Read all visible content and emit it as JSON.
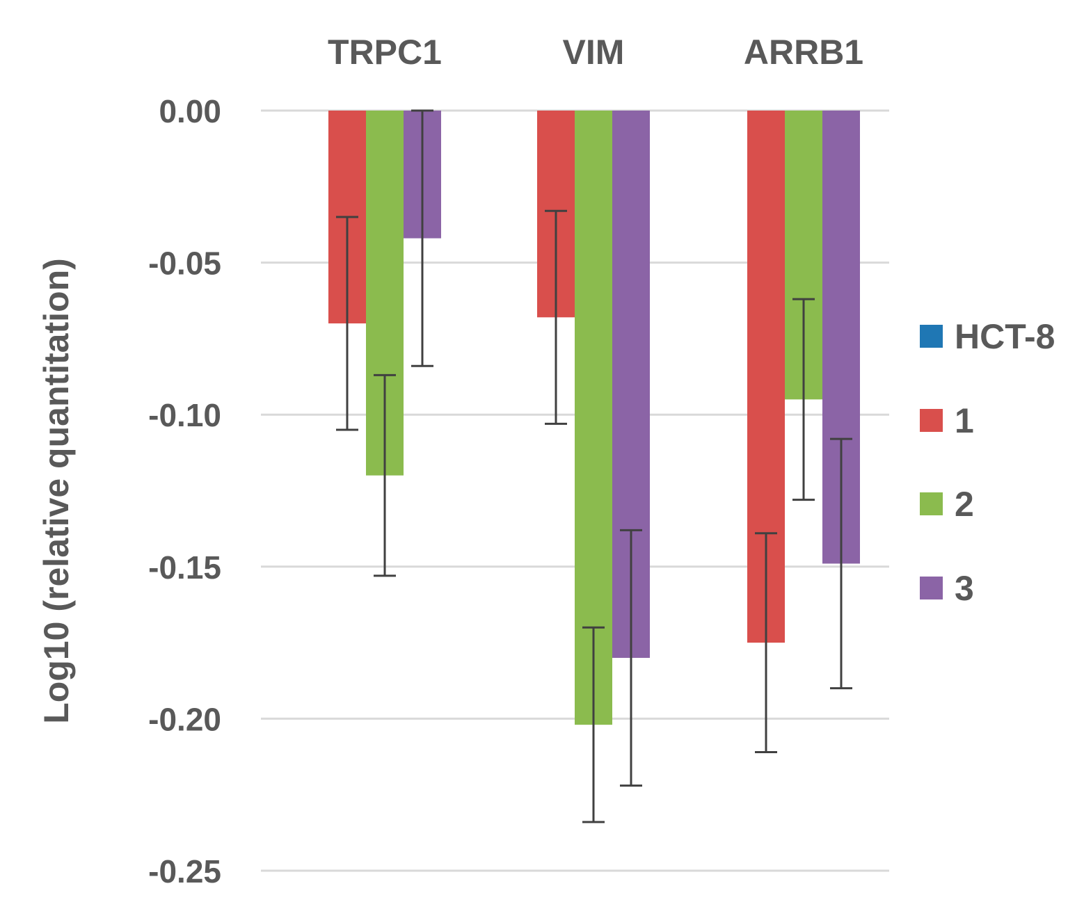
{
  "chart_data": {
    "type": "bar",
    "title": "",
    "xlabel": "",
    "ylabel": "Log10 (relative quantitation)",
    "categories": [
      "TRPC1",
      "VIM",
      "ARRB1"
    ],
    "ylim": [
      -0.25,
      0.0
    ],
    "yticks": [
      0.0,
      -0.05,
      -0.1,
      -0.15,
      -0.2,
      -0.25
    ],
    "ytick_labels": [
      "0.00",
      "-0.05",
      "-0.10",
      "-0.15",
      "-0.20",
      "-0.25"
    ],
    "grid": true,
    "legend_position": "right",
    "series": [
      {
        "name": "HCT-8",
        "color": "#1f77b4",
        "values": [
          0.0,
          0.0,
          0.0
        ],
        "errors": [
          0.0,
          0.0,
          0.0
        ]
      },
      {
        "name": "1",
        "color": "#d94f4c",
        "values": [
          -0.07,
          -0.068,
          -0.175
        ],
        "errors": [
          0.035,
          0.035,
          0.036
        ]
      },
      {
        "name": "2",
        "color": "#8bbb4e",
        "values": [
          -0.12,
          -0.202,
          -0.095
        ],
        "errors": [
          0.033,
          0.032,
          0.033
        ]
      },
      {
        "name": "3",
        "color": "#8b64a6",
        "values": [
          -0.042,
          -0.18,
          -0.149
        ],
        "errors": [
          0.042,
          0.042,
          0.041
        ]
      }
    ],
    "colors": {
      "grid": "#d9d9d9",
      "text": "#595959",
      "error_bar": "#404040"
    }
  }
}
